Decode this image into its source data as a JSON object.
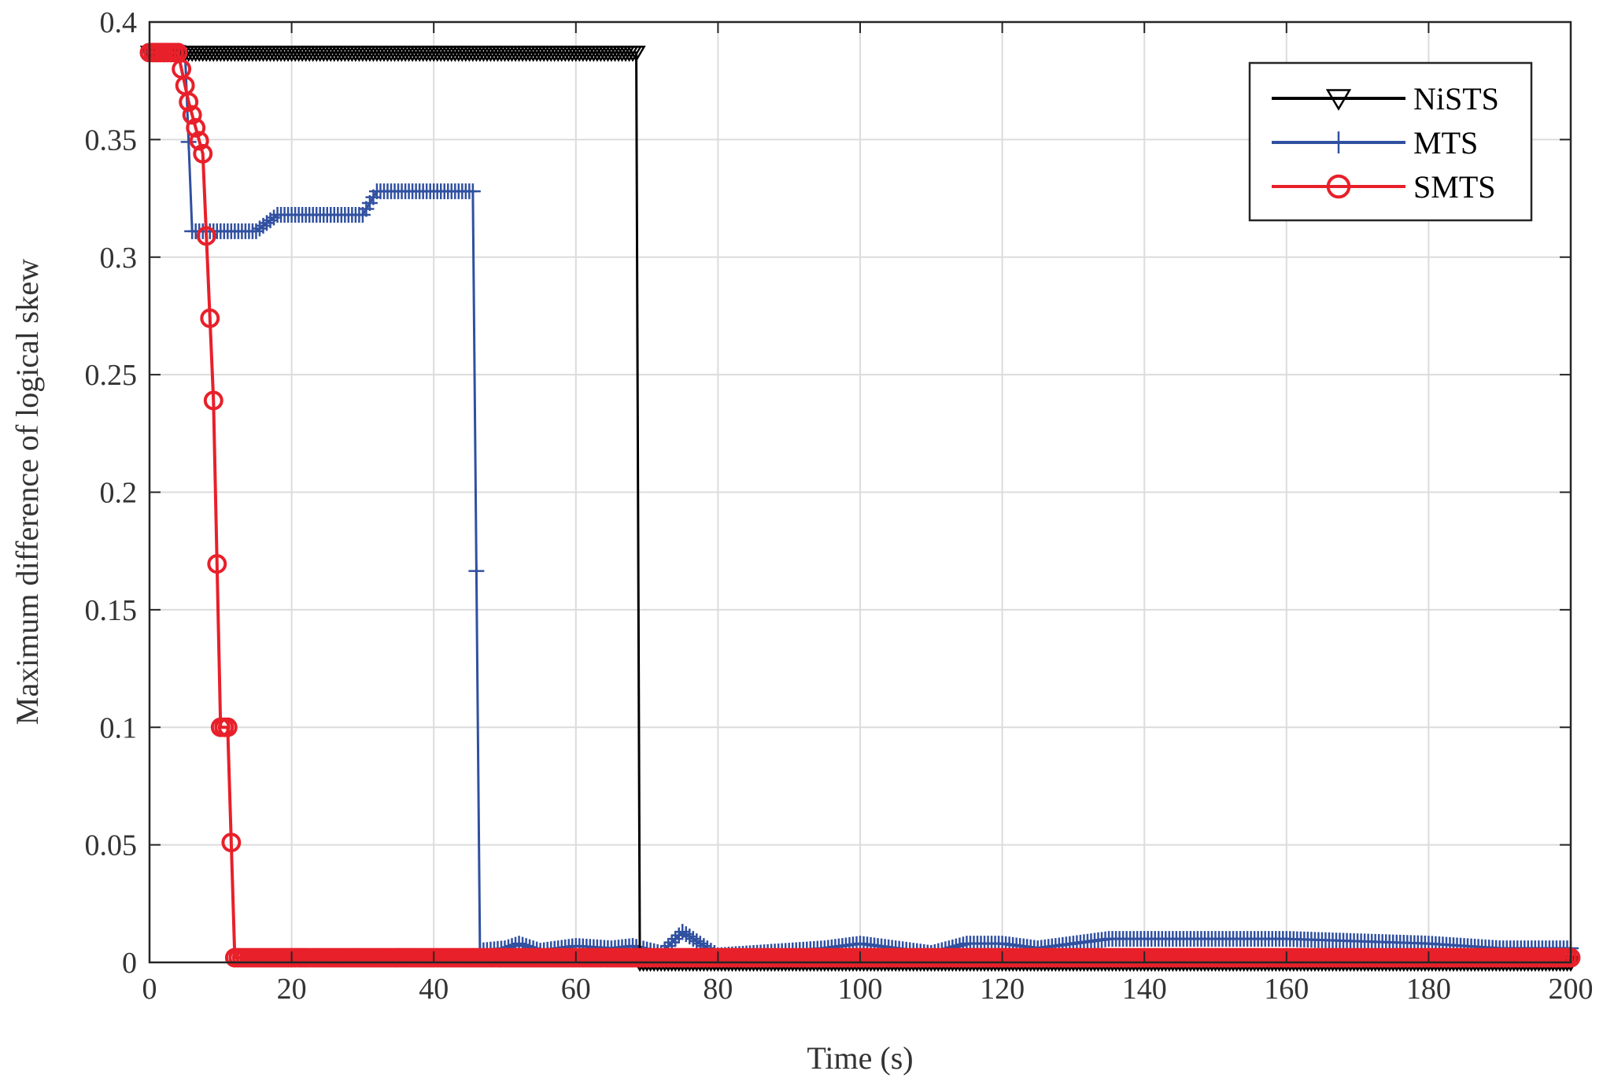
{
  "chart_data": {
    "type": "line",
    "title": "",
    "xlabel": "Time (s)",
    "ylabel": "Maximum difference of logical skew",
    "xlim": [
      0,
      200
    ],
    "ylim": [
      0,
      0.4
    ],
    "xticks": [
      0,
      20,
      40,
      60,
      80,
      100,
      120,
      140,
      160,
      180,
      200
    ],
    "yticks": [
      0,
      0.05,
      0.1,
      0.15,
      0.2,
      0.25,
      0.3,
      0.35,
      0.4
    ],
    "xtick_labels": [
      "0",
      "20",
      "40",
      "60",
      "80",
      "100",
      "120",
      "140",
      "160",
      "180",
      "200"
    ],
    "ytick_labels": [
      "0",
      "0.05",
      "0.1",
      "0.15",
      "0.2",
      "0.25",
      "0.3",
      "0.35",
      "0.4"
    ],
    "grid": true,
    "legend_position": "top-right",
    "series": [
      {
        "name": "NiSTS",
        "color": "#000000",
        "marker": "triangle-down",
        "x": [
          0,
          68.5,
          69,
          200
        ],
        "y": [
          0.387,
          0.387,
          0,
          0
        ]
      },
      {
        "name": "MTS",
        "color": "#3050a0",
        "marker": "plus",
        "x": [
          0,
          5,
          6,
          15,
          18,
          30,
          32,
          45.5,
          46.5,
          50,
          52,
          55,
          60,
          65,
          68,
          72,
          75,
          78,
          80,
          95,
          100,
          105,
          110,
          115,
          120,
          125,
          135,
          140,
          160,
          180,
          190,
          200
        ],
        "y": [
          0.387,
          0.387,
          0.311,
          0.311,
          0.318,
          0.318,
          0.328,
          0.328,
          0.005,
          0.006,
          0.008,
          0.005,
          0.007,
          0.006,
          0.007,
          0.004,
          0.013,
          0.007,
          0.003,
          0.006,
          0.008,
          0.006,
          0.004,
          0.008,
          0.008,
          0.006,
          0.01,
          0.01,
          0.01,
          0.008,
          0.006,
          0.006
        ]
      },
      {
        "name": "SMTS",
        "color": "#e8202a",
        "marker": "circle",
        "x": [
          0,
          4,
          5.5,
          7.5,
          9,
          10,
          11,
          12,
          200
        ],
        "y": [
          0.387,
          0.387,
          0.366,
          0.344,
          0.239,
          0.1,
          0.1,
          0.002,
          0.002
        ]
      }
    ]
  }
}
